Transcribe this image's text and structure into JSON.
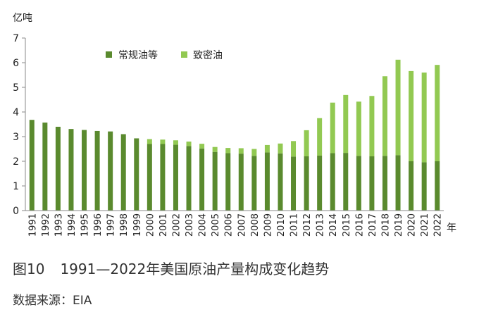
{
  "caption": {
    "figure_number": "图10",
    "title": "1991—2022年美国原油产量构成变化趋势"
  },
  "source": "数据来源：EIA",
  "chart_data": {
    "type": "bar",
    "stacked": true,
    "y_unit": "亿吨",
    "x_unit": "年",
    "ylim": [
      0,
      7
    ],
    "yticks": [
      0,
      1,
      2,
      3,
      4,
      5,
      6,
      7
    ],
    "grid": false,
    "legend_position": "top-center",
    "categories": [
      "1991",
      "1992",
      "1993",
      "1994",
      "1995",
      "1996",
      "1997",
      "1998",
      "1999",
      "2000",
      "2001",
      "2002",
      "2003",
      "2004",
      "2005",
      "2006",
      "2007",
      "2008",
      "2009",
      "2010",
      "2011",
      "2012",
      "2013",
      "2014",
      "2015",
      "2016",
      "2017",
      "2018",
      "2019",
      "2020",
      "2021",
      "2022"
    ],
    "series": [
      {
        "name": "常规油等",
        "color": "#5a8a2e",
        "values": [
          3.68,
          3.57,
          3.4,
          3.31,
          3.27,
          3.23,
          3.21,
          3.1,
          2.93,
          2.7,
          2.7,
          2.67,
          2.62,
          2.52,
          2.38,
          2.33,
          2.31,
          2.22,
          2.36,
          2.32,
          2.19,
          2.2,
          2.23,
          2.33,
          2.34,
          2.22,
          2.2,
          2.22,
          2.25,
          2.0,
          1.96,
          2.0
        ]
      },
      {
        "name": "致密油",
        "color": "#92c952",
        "values": [
          0,
          0,
          0,
          0,
          0,
          0,
          0,
          0,
          0,
          0.2,
          0.18,
          0.18,
          0.18,
          0.19,
          0.2,
          0.21,
          0.22,
          0.28,
          0.3,
          0.4,
          0.63,
          1.06,
          1.52,
          2.05,
          2.35,
          2.2,
          2.45,
          3.23,
          3.87,
          3.66,
          3.64,
          3.91
        ]
      }
    ]
  }
}
